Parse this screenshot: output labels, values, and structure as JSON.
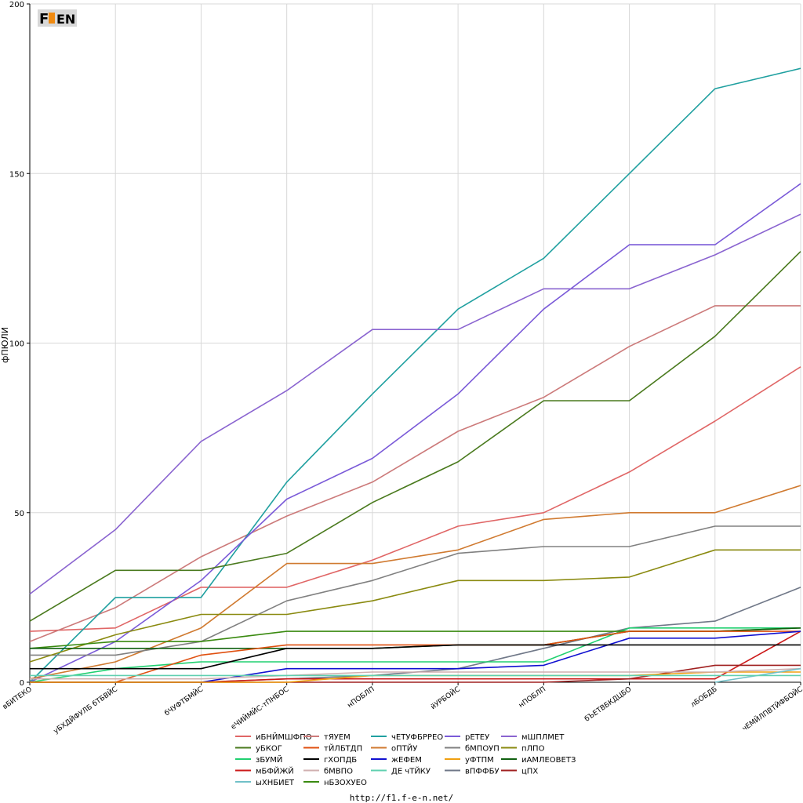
{
  "footer_url": "http://f1.f-e-n.net/",
  "logo_text": "F1EN",
  "chart_data": {
    "type": "line",
    "ylabel": "фПЮЛИ",
    "xlabel": "",
    "ylim": [
      0,
      200
    ],
    "yticks": [
      0,
      50,
      100,
      150,
      200
    ],
    "grid": true,
    "legend_position": "bottom-center",
    "categories": [
      "вБИТЕКО",
      "уБХДЙФУЛБ бТБВЙС",
      "бЧУФТБМЙС",
      "еЧИЙМЙС-тПНБОС",
      "нПОБЛП",
      "йУРБОЙС",
      "нПОБЛП",
      "бЪЕТВБКДЦБО",
      "лБОБДБ",
      "чЕМЙЛПВТЙФБОЙС"
    ],
    "series": [
      {
        "name": "иБНЙМШФПО",
        "color": "#e06666",
        "values": [
          15,
          16,
          28,
          28,
          36,
          46,
          50,
          62,
          77,
          93
        ]
      },
      {
        "name": "тЯУЕМ",
        "color": "#cc7a7a",
        "values": [
          12,
          22,
          37,
          49,
          59,
          74,
          84,
          99,
          111,
          111
        ]
      },
      {
        "name": "чЕТУФБРРЕО",
        "color": "#20a0a0",
        "values": [
          0,
          25,
          25,
          59,
          85,
          110,
          125,
          150,
          175,
          181
        ]
      },
      {
        "name": "рЕТЕУ",
        "color": "#7a5ad8",
        "values": [
          0,
          12,
          30,
          54,
          66,
          85,
          110,
          129,
          129,
          147
        ]
      },
      {
        "name": "мШПЛМЕТ",
        "color": "#8a64d0",
        "values": [
          26,
          45,
          71,
          86,
          104,
          104,
          116,
          116,
          126,
          138
        ]
      },
      {
        "name": "уБКОГ",
        "color": "#4a7a1e",
        "values": [
          18,
          33,
          33,
          38,
          53,
          65,
          83,
          83,
          102,
          127
        ]
      },
      {
        "name": "оПТЙУ",
        "color": "#d07a30",
        "values": [
          1,
          6,
          16,
          35,
          35,
          39,
          48,
          50,
          50,
          58
        ]
      },
      {
        "name": "бМПОУП",
        "color": "#808080",
        "values": [
          8,
          8,
          12,
          24,
          30,
          38,
          40,
          40,
          46,
          46
        ]
      },
      {
        "name": "пЛПО",
        "color": "#8a8a10",
        "values": [
          6,
          14,
          20,
          20,
          24,
          30,
          30,
          31,
          39,
          39
        ]
      },
      {
        "name": "вПФФБУ",
        "color": "#707888",
        "values": [
          0,
          0,
          0,
          1,
          2,
          4,
          10,
          16,
          18,
          28
        ]
      },
      {
        "name": "зБУМЙ",
        "color": "#20d070",
        "values": [
          0,
          4,
          6,
          6,
          6,
          6,
          6,
          16,
          16,
          16
        ]
      },
      {
        "name": "нБЗОХУЕО",
        "color": "#3a8a10",
        "values": [
          10,
          12,
          12,
          15,
          15,
          15,
          15,
          15,
          15,
          16
        ]
      },
      {
        "name": "иАМЛЕОВЕТЗ",
        "color": "#106010",
        "values": [
          10,
          10,
          10,
          10,
          10,
          11,
          11,
          15,
          15,
          16
        ]
      },
      {
        "name": "тЙЛБТДП",
        "color": "#e05010",
        "values": [
          0,
          0,
          8,
          11,
          11,
          11,
          11,
          15,
          15,
          15
        ]
      },
      {
        "name": "мБФЙЖЙ",
        "color": "#cc1a1a",
        "values": [
          0,
          0,
          0,
          1,
          1,
          1,
          1,
          1,
          1,
          15
        ]
      },
      {
        "name": "жЕФЕМ",
        "color": "#1010d0",
        "values": [
          0,
          0,
          0,
          4,
          4,
          4,
          5,
          13,
          13,
          15
        ]
      },
      {
        "name": "гХОПДБ",
        "color": "#000000",
        "values": [
          4,
          4,
          4,
          10,
          10,
          11,
          11,
          11,
          11,
          11
        ]
      },
      {
        "name": "цПХ",
        "color": "#a02020",
        "values": [
          0,
          0,
          0,
          0,
          0,
          0,
          0,
          1,
          5,
          5
        ]
      },
      {
        "name": "уФТПМ",
        "color": "#f0a010",
        "values": [
          0,
          0,
          0,
          0,
          2,
          2,
          2,
          2,
          3,
          3
        ]
      },
      {
        "name": "бМВПО",
        "color": "#d0b0b0",
        "values": [
          1,
          1,
          1,
          2,
          3,
          3,
          3,
          3,
          3,
          4
        ]
      },
      {
        "name": "ыХНБИЕТ",
        "color": "#70c0c8",
        "values": [
          null,
          null,
          null,
          null,
          null,
          null,
          null,
          null,
          0,
          4
        ]
      },
      {
        "name": "ДЕ чТЙКУ",
        "color": "#60d0b0",
        "values": [
          2,
          2,
          2,
          2,
          2,
          2,
          2,
          2,
          2,
          2
        ]
      }
    ],
    "legend_columns": [
      [
        "иБНЙМШФПО",
        "уБКОГ",
        "зБУМЙ",
        "мБФЙЖЙ",
        "ыХНБИЕТ"
      ],
      [
        "тЯУЕМ",
        "тЙЛБТДП",
        "гХОПДБ",
        "бМВПО",
        "нБЗОХУЕО"
      ],
      [
        "чЕТУФБРРЕО",
        "оПТЙУ",
        "жЕФЕМ",
        "ДЕ чТЙКУ"
      ],
      [
        "рЕТЕУ",
        "бМПОУП",
        "уФТПМ",
        "вПФФБУ"
      ],
      [
        "мШПЛМЕТ",
        "пЛПО",
        "иАМЛЕОВЕТЗ",
        "цПХ"
      ]
    ]
  }
}
